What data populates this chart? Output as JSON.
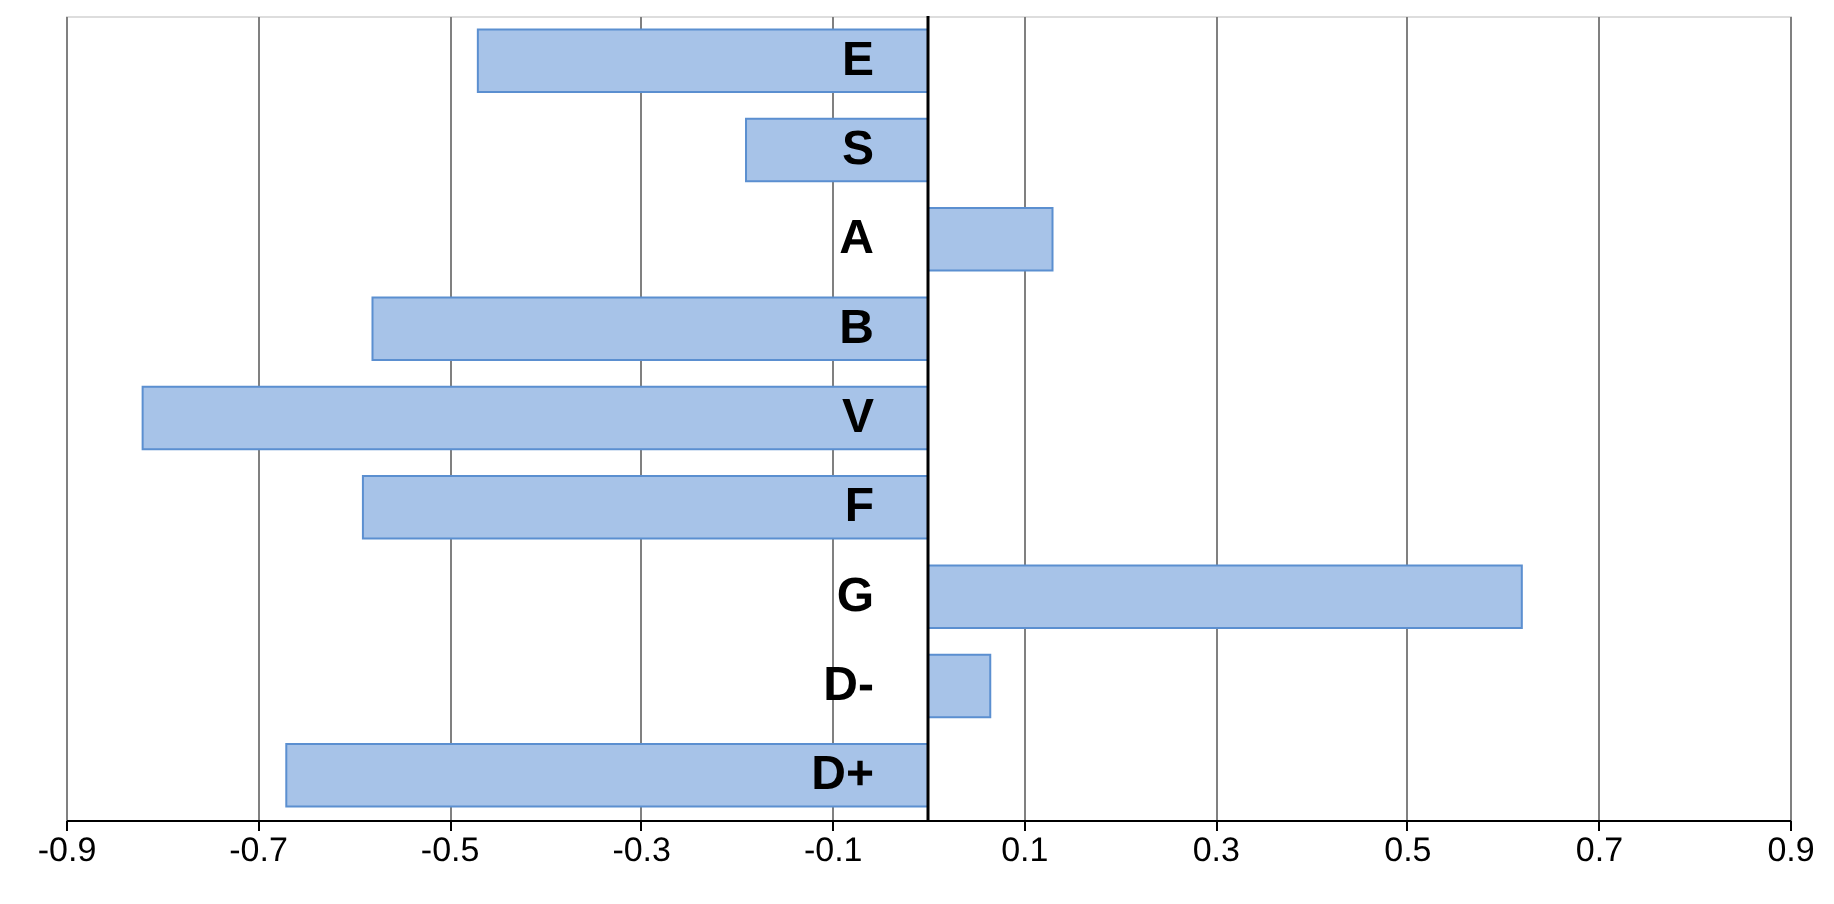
{
  "chart_data": {
    "type": "bar",
    "orientation": "horizontal",
    "categories": [
      "E",
      "S",
      "A",
      "B",
      "V",
      "F",
      "G",
      "D-",
      "D+"
    ],
    "values": [
      -0.47,
      -0.19,
      0.13,
      -0.58,
      -0.82,
      -0.59,
      0.62,
      0.065,
      -0.67
    ],
    "color": "#a7c3e8",
    "xlim": [
      -0.9,
      0.9
    ],
    "xticks": [
      -0.9,
      -0.7,
      -0.5,
      -0.3,
      -0.1,
      0.1,
      0.3,
      0.5,
      0.7,
      0.9
    ],
    "grid": "x"
  }
}
